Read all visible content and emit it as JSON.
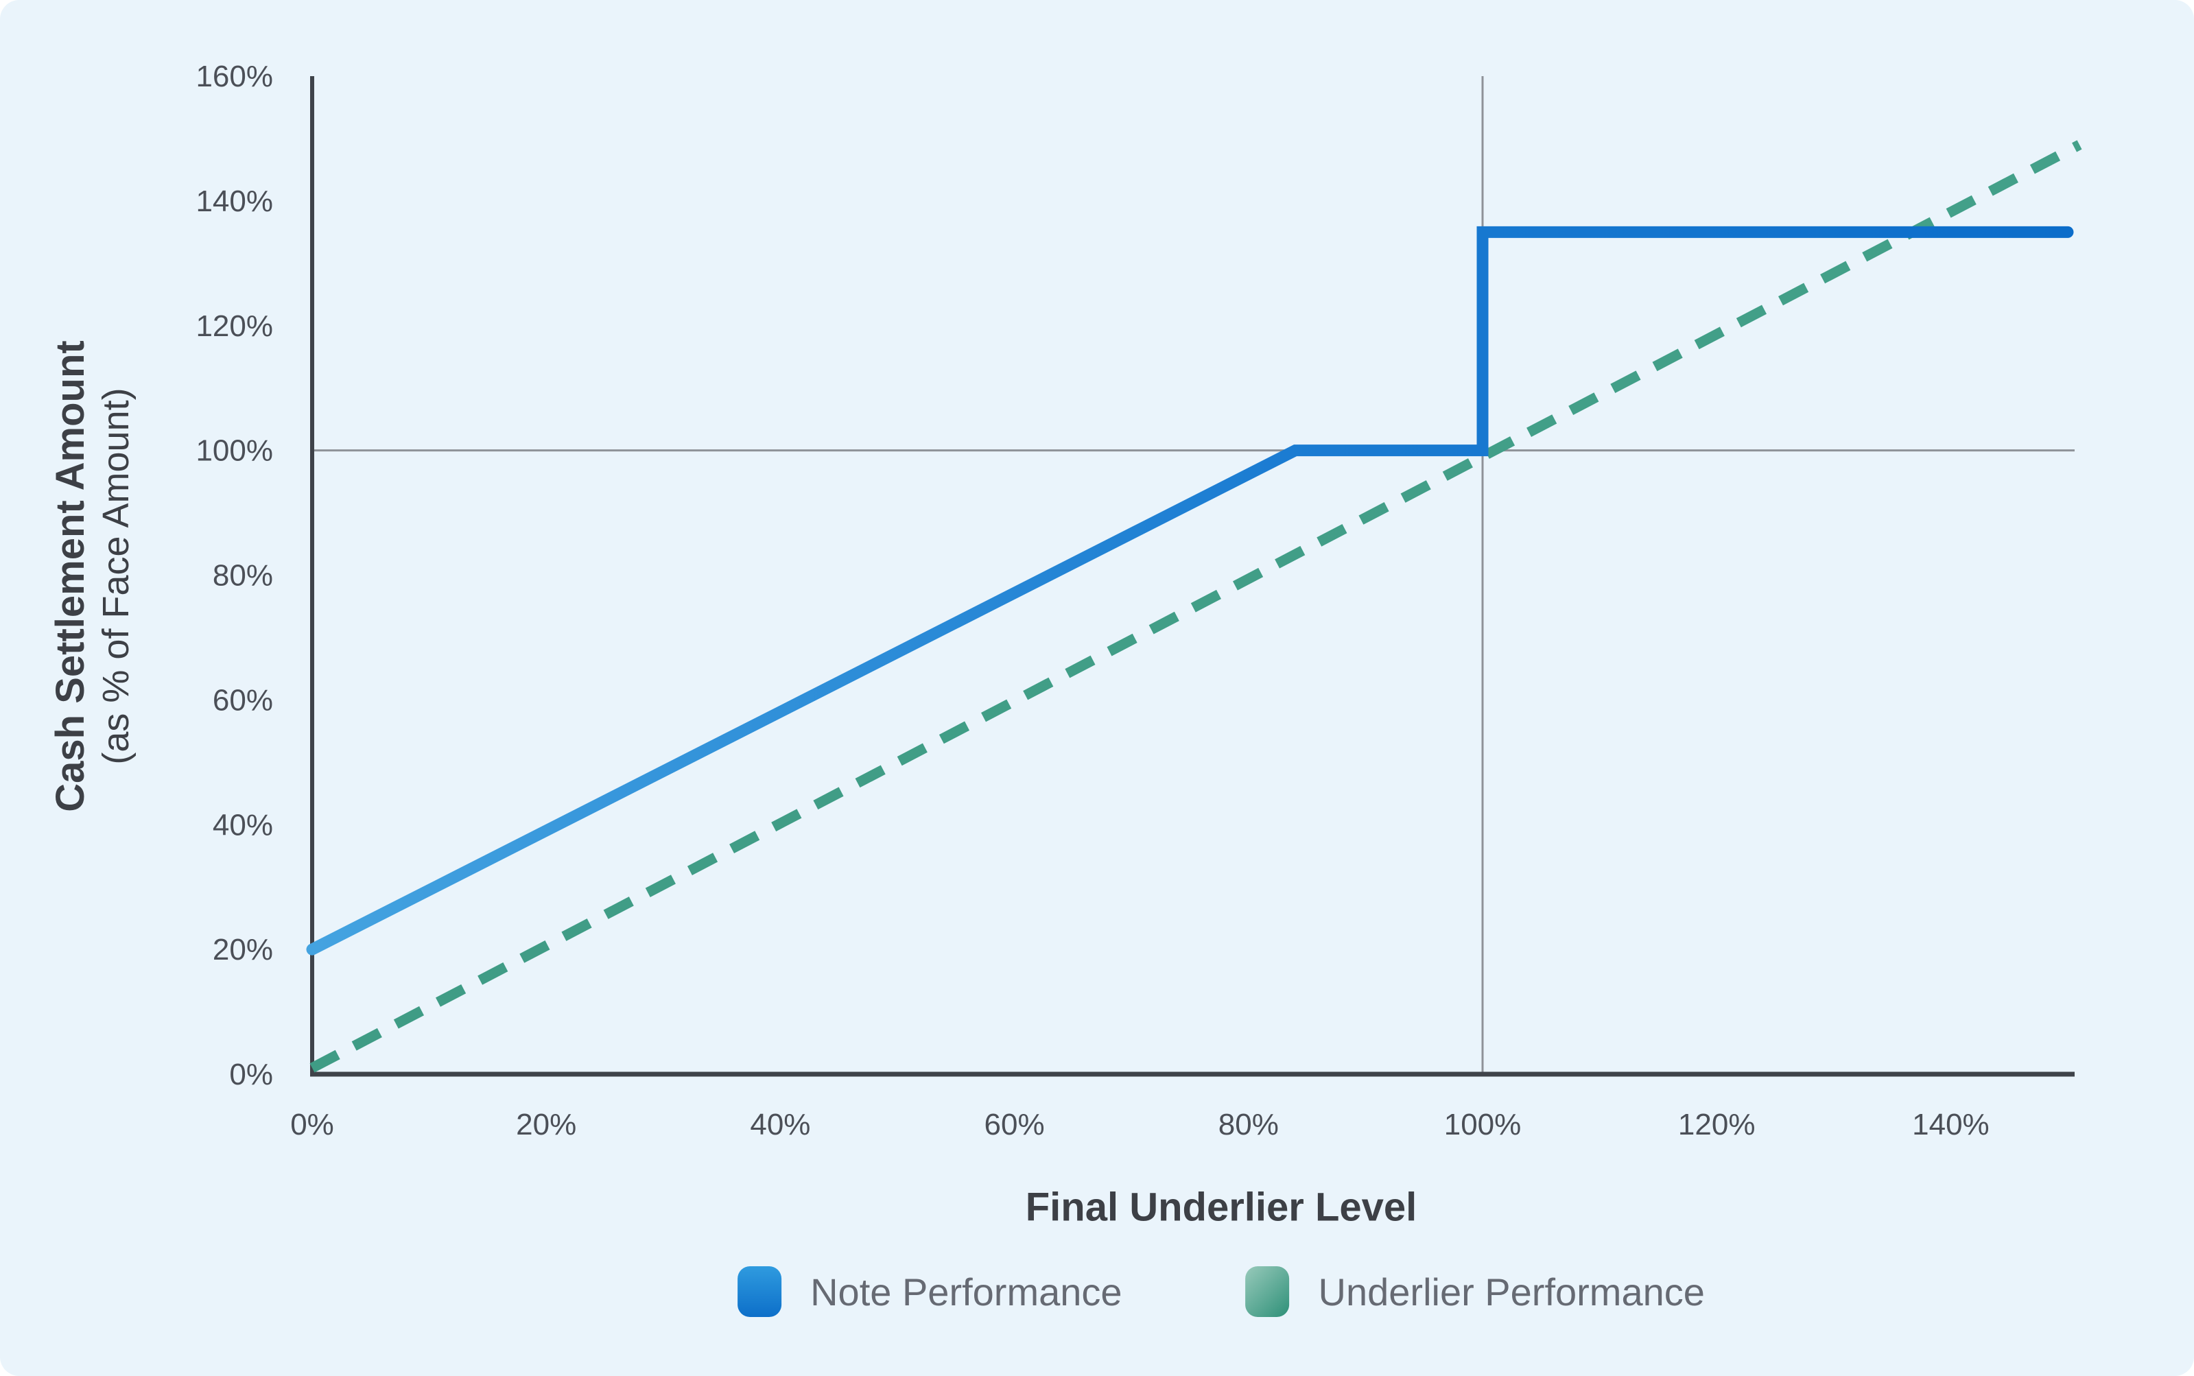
{
  "chart_data": {
    "type": "line",
    "title": "",
    "xlabel": "Final Underlier Level",
    "ylabel_line1": "Cash Settlement Amount",
    "ylabel_line2": "(as % of Face Amount)",
    "xlim": [
      0,
      150
    ],
    "ylim": [
      0,
      160
    ],
    "grid": "reference-crosshair-only",
    "legend_position": "bottom-center",
    "x_axis": {
      "tick_values": [
        0,
        20,
        40,
        60,
        80,
        100,
        120,
        140
      ],
      "tick_labels": [
        "0%",
        "20%",
        "40%",
        "60%",
        "80%",
        "100%",
        "120%",
        "140%"
      ]
    },
    "y_axis": {
      "tick_values": [
        0,
        20,
        40,
        60,
        80,
        100,
        120,
        140,
        160
      ],
      "tick_labels": [
        "0%",
        "20%",
        "40%",
        "60%",
        "80%",
        "100%",
        "120%",
        "140%",
        "160%"
      ]
    },
    "reference_lines": {
      "vertical_at_x": 100,
      "horizontal_at_y": 100
    },
    "series": [
      {
        "name": "Note Performance",
        "style": "solid",
        "points": [
          [
            0,
            20
          ],
          [
            84,
            100
          ],
          [
            100,
            100
          ],
          [
            100,
            135
          ],
          [
            150,
            135
          ]
        ]
      },
      {
        "name": "Underlier Performance",
        "style": "dashed",
        "points": [
          [
            0,
            1
          ],
          [
            151,
            149
          ]
        ]
      }
    ],
    "legend": [
      {
        "label": "Note Performance"
      },
      {
        "label": "Underlier Performance"
      }
    ]
  },
  "colors": {
    "background": "#eaf4fb",
    "axis": "#3f434a",
    "reference_line": "#8e9298",
    "tick_text": "#4b4f57",
    "title_text": "#3d4046",
    "legend_text": "#666a73",
    "note_line_start": "#44a3e0",
    "note_line_mid": "#1b7cd2",
    "note_line_end": "#0c6dca",
    "underlier_line_start": "#3f9c85",
    "underlier_line_end": "#43a089",
    "legend_note_swatch_top": "#2f9bdf",
    "legend_note_swatch_bottom": "#0d6fc9",
    "legend_underlier_swatch_light": "#98cabb",
    "legend_underlier_swatch_dark": "#2e9078"
  }
}
